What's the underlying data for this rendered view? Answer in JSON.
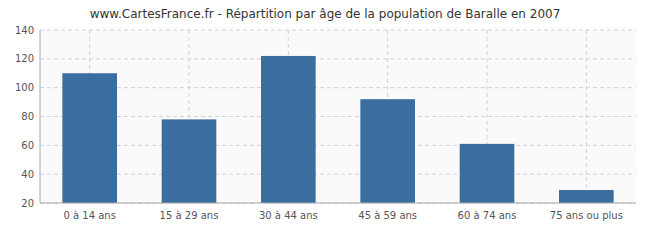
{
  "chart_data": {
    "type": "bar",
    "title": "www.CartesFrance.fr - Répartition par âge de la population de Baralle en 2007",
    "categories": [
      "0 à 14 ans",
      "15 à 29 ans",
      "30 à 44 ans",
      "45 à 59 ans",
      "60 à 74 ans",
      "75 ans ou plus"
    ],
    "values": [
      110,
      78,
      122,
      92,
      61,
      29
    ],
    "color": "#3a6e9e",
    "ylim": [
      20,
      140
    ],
    "yticks": [
      20,
      40,
      60,
      80,
      100,
      120,
      140
    ],
    "grid": true
  }
}
